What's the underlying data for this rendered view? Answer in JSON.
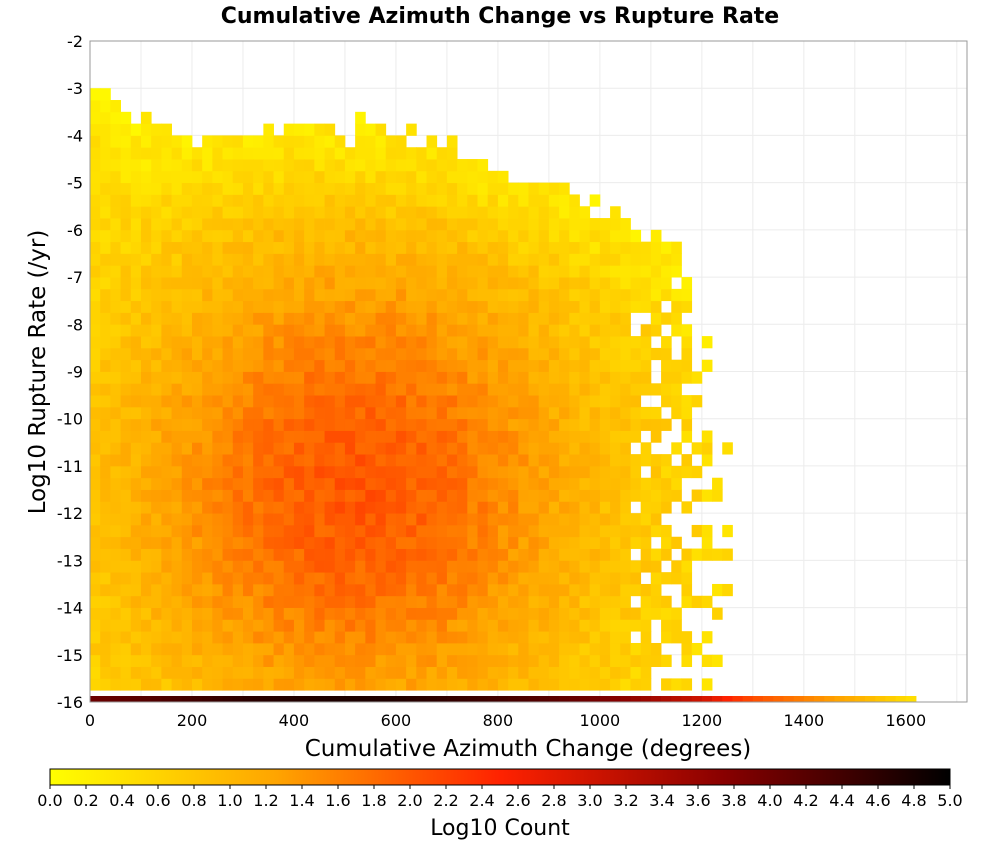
{
  "chart_data": {
    "type": "heatmap",
    "title": "Cumulative Azimuth Change vs Rupture Rate",
    "xlabel": "Cumulative Azimuth Change (degrees)",
    "ylabel": "Log10 Rupture Rate (/yr)",
    "xlim": [
      0,
      1720
    ],
    "ylim": [
      -16,
      -2
    ],
    "x_ticks": [
      "0",
      "200",
      "400",
      "600",
      "800",
      "1000",
      "1200",
      "1400",
      "1600"
    ],
    "y_ticks": [
      "-2",
      "-3",
      "-4",
      "-5",
      "-6",
      "-7",
      "-8",
      "-9",
      "-10",
      "-11",
      "-12",
      "-13",
      "-14",
      "-15",
      "-16"
    ],
    "bin": {
      "x_width": 20,
      "y_height": 0.25
    },
    "grid": true,
    "colorbar": {
      "label": "Log10 Count",
      "min": 0,
      "max": 5,
      "ticks": [
        "0.0",
        "0.2",
        "0.4",
        "0.6",
        "0.8",
        "1.0",
        "1.2",
        "1.4",
        "1.6",
        "1.8",
        "2.0",
        "2.2",
        "2.4",
        "2.6",
        "2.8",
        "3.0",
        "3.2",
        "3.4",
        "3.6",
        "3.8",
        "4.0",
        "4.2",
        "4.4",
        "4.6",
        "4.8",
        "5.0"
      ],
      "colors": [
        "#ffff00",
        "#ffa500",
        "#ff2200",
        "#880000",
        "#000000"
      ]
    },
    "density_summary": {
      "note": "2D histogram of log10 counts; peak near 520 degrees at rate -11.5 (about 2.0), decreasing toward edges (about 0.3-0.8); upper envelope of populated rates reaches -3 near 0 degrees, -4 near 700 degrees and -6.5 near 1150 degrees; populated azimuth extends to about 1250 degrees.",
      "peak": {
        "x": 520,
        "y": -11.5,
        "log10_count": 2.0
      }
    },
    "floor_row": {
      "y": -16,
      "x_start": 0,
      "x_end": 1620,
      "log10_count": [
        [
          0,
          4.0
        ],
        [
          100,
          4.2
        ],
        [
          200,
          4.4
        ],
        [
          300,
          4.6
        ],
        [
          400,
          4.7
        ],
        [
          500,
          4.75
        ],
        [
          600,
          4.7
        ],
        [
          700,
          4.55
        ],
        [
          800,
          4.4
        ],
        [
          900,
          4.2
        ],
        [
          1000,
          3.9
        ],
        [
          1100,
          3.5
        ],
        [
          1200,
          3.0
        ],
        [
          1260,
          2.4
        ],
        [
          1300,
          2.1
        ],
        [
          1400,
          1.6
        ],
        [
          1500,
          1.1
        ],
        [
          1620,
          0.4
        ]
      ]
    }
  }
}
